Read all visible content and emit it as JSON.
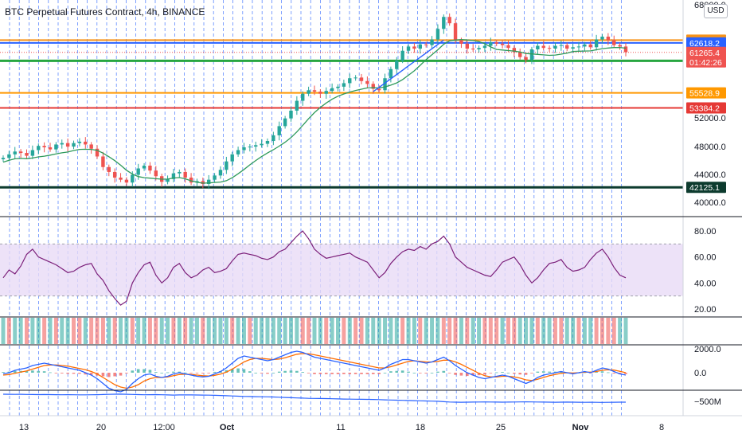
{
  "title": "BTC Perpetual Futures Contract, 4h, BINANCE",
  "currency": "USD",
  "colors": {
    "candle_up": "#26a69a",
    "candle_down": "#ef5350",
    "ma_line": "#2e9a5b",
    "trend_line": "#2962ff",
    "rsi_line": "#7b1f7a",
    "rsi_band": "#e8dbf6",
    "macd_line": "#2962ff",
    "signal_line": "#ff6d00",
    "volume_line": "#2962ff",
    "grid_dashed": "#2962ff"
  },
  "chart_data": [
    {
      "type": "line",
      "panel": "price",
      "price_axis_ticks": [
        "40000.0",
        "44000.0",
        "48000.0",
        "52000.0",
        "68000.0"
      ],
      "date_axis_labels": [
        "13",
        "20",
        "12:00",
        "Oct",
        "11",
        "18",
        "25",
        "Nov",
        "8"
      ],
      "ylim": [
        40000,
        68000
      ],
      "horizontal_levels": [
        {
          "label": "63008.7",
          "value": 63008.7,
          "color": "#f7931a",
          "box_color": "#f7931a"
        },
        {
          "label": "62618.2",
          "value": 62618.2,
          "color": "#2962ff",
          "box_color": "#2962ff"
        },
        {
          "label": "60074.7",
          "value": 60074.7,
          "color": "#27a640",
          "box_color": "#27a640"
        },
        {
          "label": "55528.9",
          "value": 55528.9,
          "color": "#ff9800",
          "box_color": "#ff9800"
        },
        {
          "label": "53384.2",
          "value": 53384.2,
          "color": "#e53935",
          "box_color": "#e53935"
        },
        {
          "label": "42125.1",
          "value": 42125.1,
          "color": "#0d3b2e",
          "box_color": "#0d3b2e"
        }
      ],
      "last_price": {
        "label": "61265.4",
        "countdown": "01:42:26",
        "value": 61265.4,
        "color": "#ef5350"
      },
      "close_series": [
        46300,
        46800,
        47200,
        47000,
        46600,
        47400,
        48000,
        47800,
        47500,
        48200,
        48400,
        47900,
        48400,
        48600,
        48200,
        47600,
        46500,
        45000,
        44300,
        43500,
        43200,
        42800,
        43900,
        44800,
        45200,
        44500,
        43700,
        42900,
        43300,
        44100,
        44300,
        43500,
        42800,
        43000,
        42600,
        43200,
        43800,
        44600,
        45800,
        46800,
        47400,
        47800,
        47900,
        48100,
        48300,
        48700,
        49500,
        50800,
        51900,
        53000,
        54400,
        55400,
        55900,
        55700,
        55400,
        55800,
        56200,
        56400,
        56900,
        57600,
        57700,
        57200,
        56800,
        56100,
        55900,
        57600,
        58900,
        60100,
        61500,
        62100,
        61800,
        62400,
        62300,
        63100,
        64600,
        66300,
        65400,
        63000,
        62500,
        61800,
        61700,
        61900,
        62200,
        62700,
        62500,
        62300,
        61900,
        61300,
        60600,
        60200,
        61700,
        62200,
        61900,
        61800,
        62200,
        62300,
        61800,
        62000,
        62100,
        62400,
        62000,
        63100,
        63500,
        63000,
        62300,
        62100,
        61300
      ]
    },
    {
      "type": "line",
      "panel": "rsi",
      "ticks": [
        "80.00",
        "60.00",
        "40.00",
        "20.00"
      ],
      "ylim": [
        20,
        80
      ],
      "band": [
        30,
        70
      ],
      "values": [
        44,
        50,
        47,
        53,
        62,
        66,
        60,
        58,
        56,
        54,
        51,
        48,
        49,
        52,
        54,
        55,
        47,
        42,
        34,
        28,
        23,
        26,
        40,
        48,
        54,
        56,
        46,
        40,
        44,
        52,
        55,
        48,
        44,
        46,
        50,
        52,
        48,
        49,
        51,
        57,
        62,
        63,
        62,
        61,
        59,
        58,
        60,
        64,
        66,
        71,
        76,
        80,
        74,
        66,
        62,
        59,
        60,
        61,
        62,
        63,
        60,
        58,
        56,
        50,
        44,
        48,
        55,
        60,
        64,
        66,
        65,
        68,
        66,
        70,
        72,
        76,
        70,
        60,
        56,
        52,
        50,
        48,
        46,
        45,
        50,
        56,
        58,
        60,
        54,
        46,
        40,
        44,
        50,
        55,
        56,
        58,
        52,
        49,
        50,
        52,
        58,
        63,
        66,
        60,
        52,
        46,
        44
      ]
    },
    {
      "type": "bar",
      "panel": "histogram",
      "note": "",
      "values": [
        1,
        -1,
        1,
        1,
        -1,
        1,
        1,
        -1,
        1,
        -1,
        1,
        1,
        -1,
        -1,
        1,
        -1,
        -1,
        -1,
        1,
        -1,
        1,
        1,
        -1,
        1,
        1,
        -1,
        -1,
        1,
        1,
        -1,
        1,
        -1,
        1,
        1,
        -1,
        1,
        1,
        1,
        1,
        -1,
        1,
        1,
        -1,
        1,
        1,
        1,
        1,
        1,
        1,
        1,
        1,
        -1,
        -1,
        1,
        1,
        -1,
        1,
        1,
        -1,
        1,
        -1,
        -1,
        1,
        1,
        1,
        1,
        1,
        1,
        -1,
        1,
        1,
        -1,
        1,
        1,
        1,
        -1,
        -1,
        -1,
        1,
        -1,
        1,
        1,
        -1,
        -1,
        -1,
        1,
        -1,
        -1,
        1,
        1,
        1,
        -1,
        1,
        1,
        -1,
        -1,
        1,
        1,
        -1,
        1,
        1,
        -1,
        -1,
        -1,
        -1,
        1,
        1
      ]
    },
    {
      "type": "line",
      "panel": "macd",
      "ticks": [
        "2000.0",
        "0.0"
      ],
      "ylim": [
        -2000,
        2000
      ],
      "macd": [
        -100,
        0,
        200,
        300,
        400,
        600,
        700,
        800,
        700,
        600,
        500,
        400,
        300,
        200,
        0,
        -200,
        -500,
        -900,
        -1300,
        -1500,
        -1600,
        -1400,
        -900,
        -500,
        -200,
        -100,
        -300,
        -400,
        -300,
        -100,
        0,
        -100,
        -200,
        -300,
        -350,
        -300,
        -100,
        100,
        400,
        800,
        1200,
        1400,
        1300,
        1200,
        1100,
        1000,
        1100,
        1300,
        1500,
        1700,
        1800,
        1700,
        1500,
        1300,
        1200,
        1100,
        1000,
        900,
        800,
        700,
        600,
        500,
        400,
        300,
        200,
        400,
        700,
        900,
        1100,
        1100,
        1000,
        900,
        800,
        900,
        1100,
        1300,
        1000,
        600,
        300,
        0,
        -200,
        -400,
        -500,
        -400,
        -300,
        -200,
        -300,
        -500,
        -700,
        -900,
        -700,
        -400,
        -200,
        -100,
        0,
        100,
        0,
        -100,
        0,
        100,
        0,
        200,
        400,
        300,
        100,
        -100,
        -200
      ],
      "signal": [
        -200,
        -150,
        -50,
        50,
        150,
        300,
        450,
        600,
        650,
        650,
        600,
        550,
        450,
        350,
        250,
        100,
        -100,
        -400,
        -700,
        -1000,
        -1200,
        -1300,
        -1200,
        -1000,
        -700,
        -500,
        -400,
        -400,
        -350,
        -250,
        -150,
        -120,
        -150,
        -200,
        -250,
        -280,
        -220,
        -120,
        50,
        300,
        600,
        900,
        1100,
        1200,
        1200,
        1150,
        1100,
        1150,
        1250,
        1400,
        1550,
        1600,
        1580,
        1500,
        1400,
        1300,
        1200,
        1100,
        1000,
        900,
        800,
        700,
        600,
        500,
        400,
        400,
        500,
        650,
        800,
        950,
        1000,
        950,
        900,
        900,
        950,
        1050,
        1050,
        900,
        700,
        450,
        200,
        -50,
        -250,
        -350,
        -350,
        -300,
        -300,
        -350,
        -450,
        -600,
        -650,
        -550,
        -400,
        -250,
        -150,
        -50,
        0,
        -30,
        0,
        50,
        50,
        100,
        200,
        250,
        220,
        120,
        0
      ]
    },
    {
      "type": "line",
      "panel": "volume_cumulative",
      "ticks": [
        "−500M"
      ],
      "values": [
        -1450,
        -1440,
        -1430,
        -1440,
        -1420,
        -1410,
        -1400,
        -1410,
        -1400,
        -1390,
        -1380,
        -1390,
        -1380,
        -1370,
        -1375,
        -1380,
        -1395,
        -1410,
        -1430,
        -1450,
        -1460,
        -1440,
        -1420,
        -1400,
        -1380,
        -1390,
        -1400,
        -1380,
        -1360,
        -1350,
        -1360,
        -1370,
        -1360,
        -1355,
        -1350,
        -1340,
        -1320,
        -1300,
        -1270,
        -1240,
        -1210,
        -1180,
        -1170,
        -1160,
        -1150,
        -1140,
        -1120,
        -1090,
        -1060,
        -1030,
        -1000,
        -980,
        -960,
        -950,
        -940,
        -930,
        -910,
        -890,
        -870,
        -860,
        -850,
        -840,
        -830,
        -820,
        -800,
        -780,
        -760,
        -740,
        -720,
        -700,
        -680,
        -660,
        -640,
        -620,
        -600,
        -560,
        -520,
        -500,
        -490,
        -500,
        -510,
        -520,
        -530,
        -520,
        -510,
        -500,
        -510,
        -520,
        -530,
        -540,
        -530,
        -520,
        -510,
        -500,
        -490,
        -500,
        -510,
        -500,
        -490,
        -480,
        -490,
        -480,
        -470,
        -480,
        -490,
        -500,
        -500
      ]
    }
  ]
}
